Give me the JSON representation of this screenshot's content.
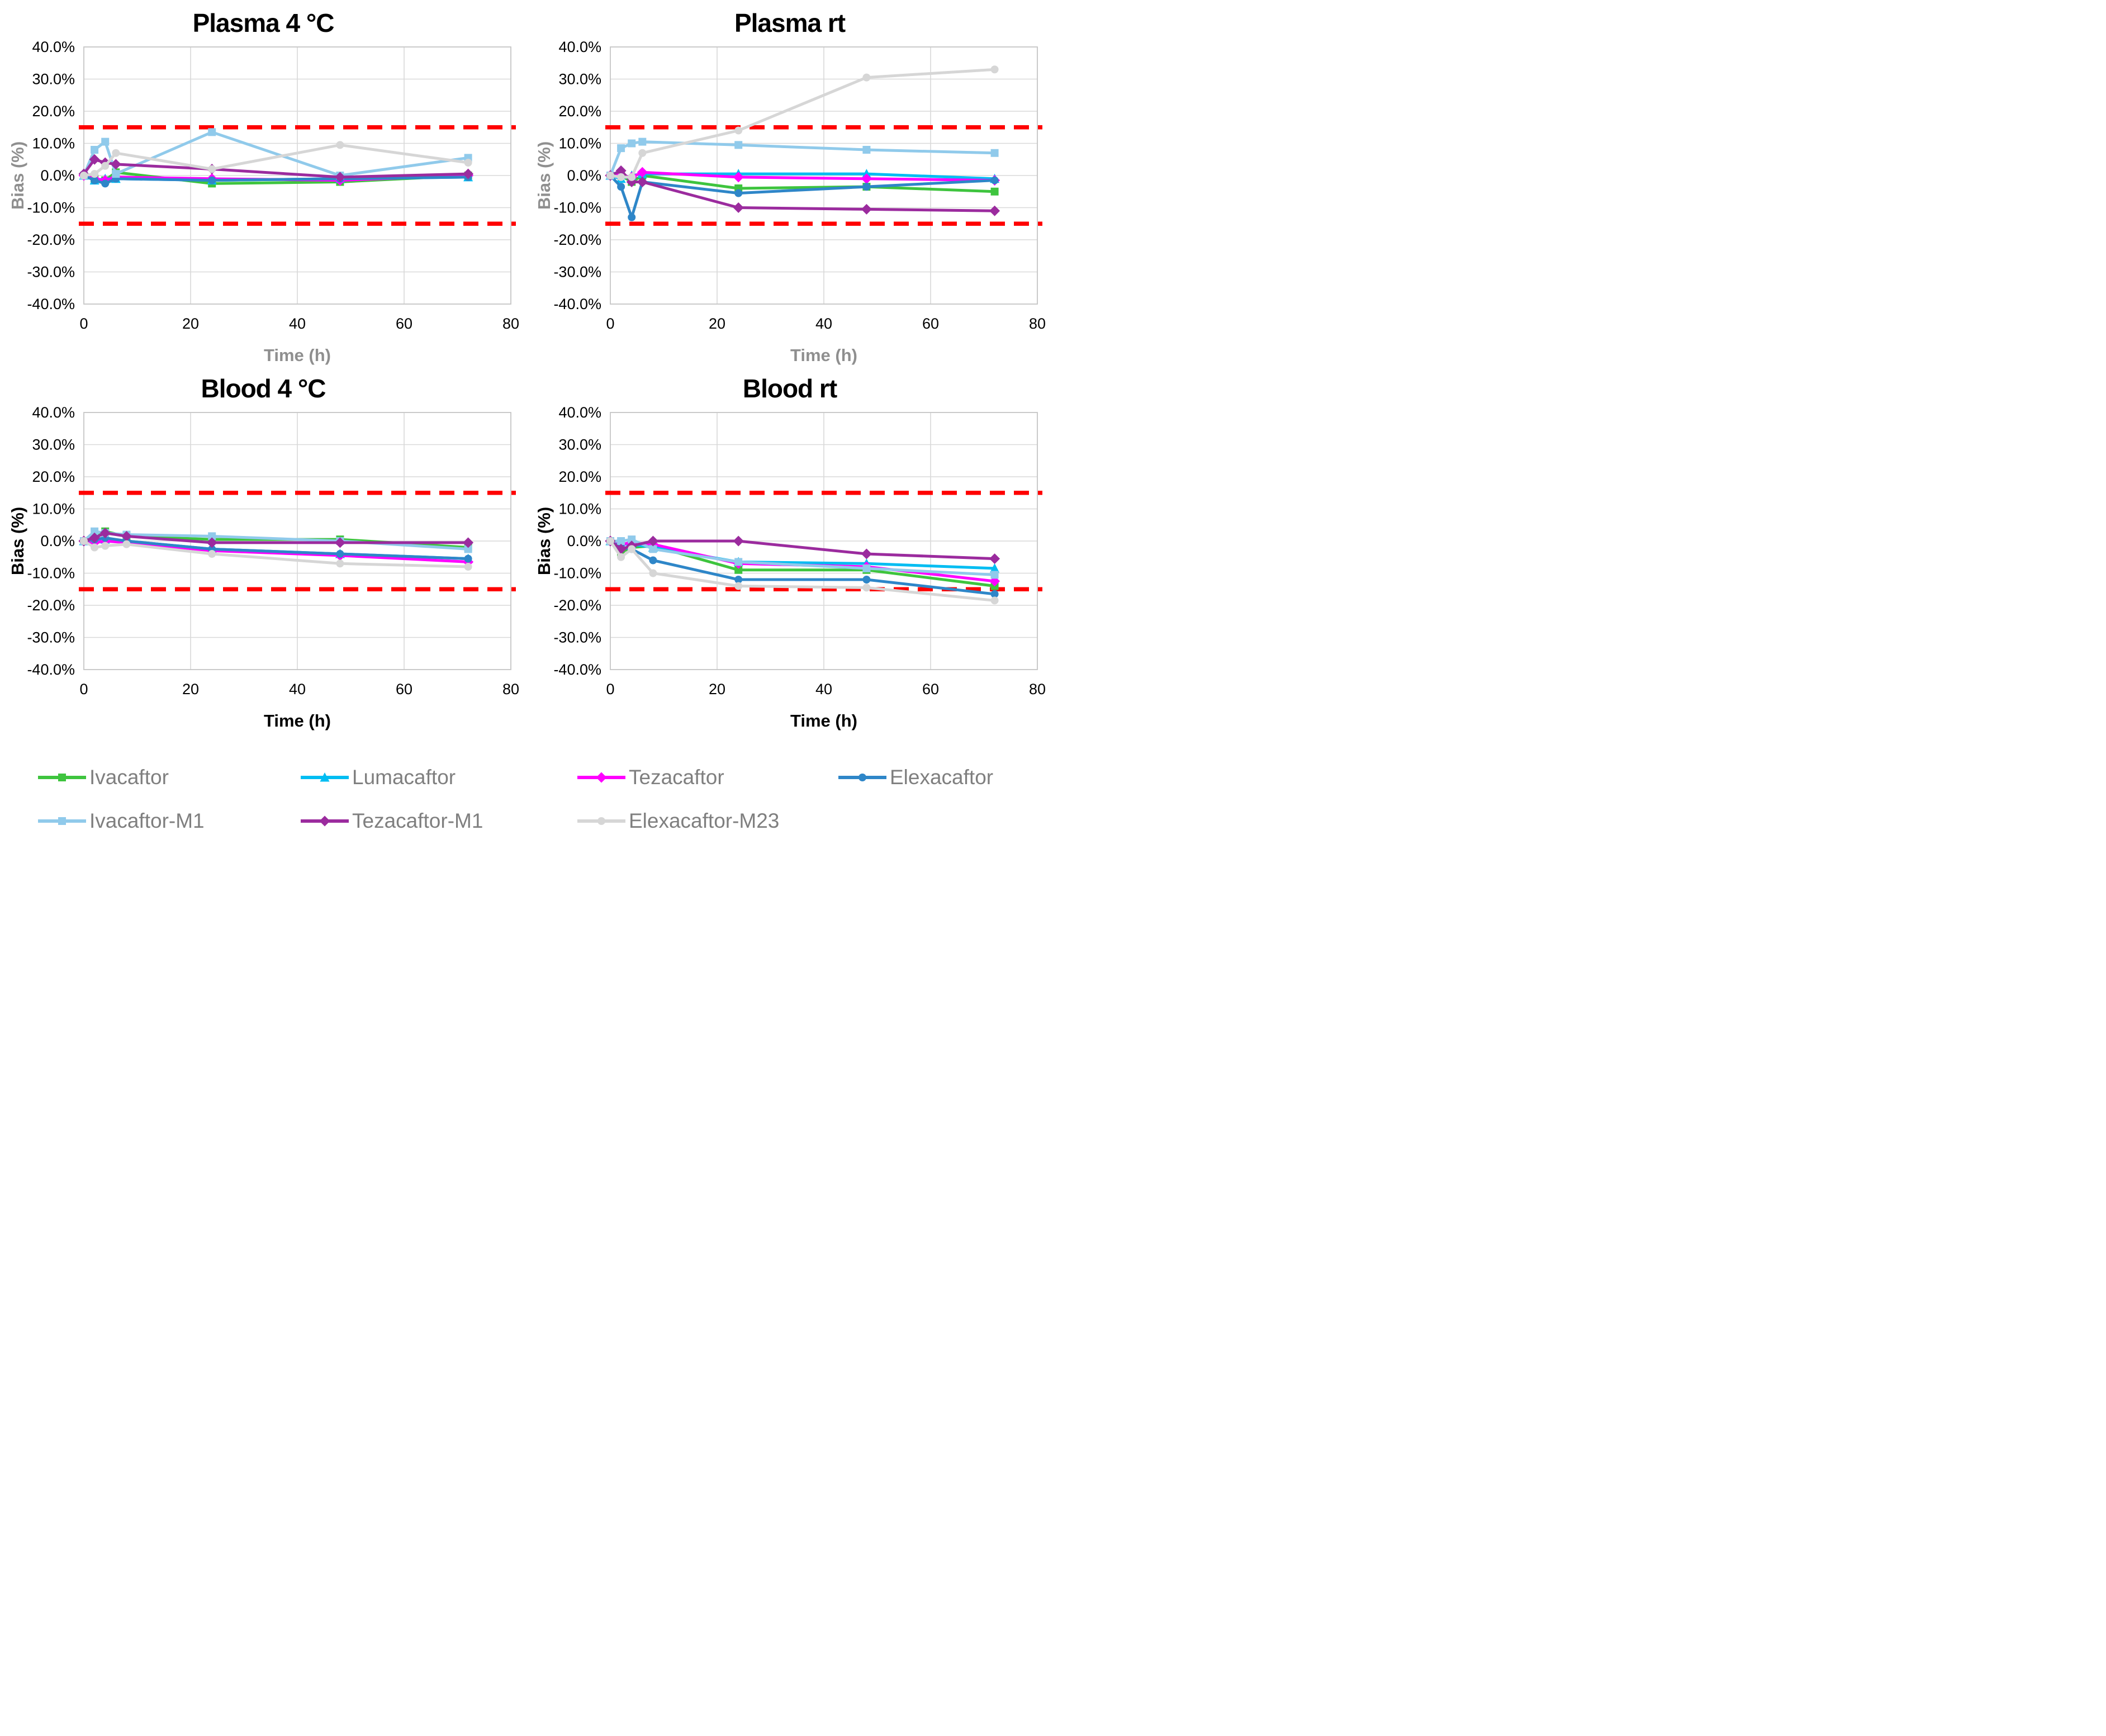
{
  "figure": {
    "background": "#FFFFFF",
    "grid_color": "#D9D9D9",
    "plot_border_color": "#C6C6C6",
    "limit_line_color": "#FF0000",
    "tick_label_color": "#000000",
    "legend_text_color": "#7F7F7F"
  },
  "legend": {
    "items": [
      {
        "label": "Ivacaftor",
        "color": "#3EC43E",
        "marker": "square"
      },
      {
        "label": "Lumacaftor",
        "color": "#00BDF2",
        "marker": "triangle"
      },
      {
        "label": "Tezacaftor",
        "color": "#FF00FF",
        "marker": "diamond"
      },
      {
        "label": "Elexacaftor",
        "color": "#2E86C8",
        "marker": "circle"
      },
      {
        "label": "Ivacaftor-M1",
        "color": "#90CAEB",
        "marker": "square"
      },
      {
        "label": "Tezacaftor-M1",
        "color": "#9B2B9E",
        "marker": "diamond"
      },
      {
        "label": "Elexacaftor-M23",
        "color": "#D6D6D6",
        "marker": "circle"
      }
    ]
  },
  "chart_data": [
    {
      "type": "line",
      "title": "Plasma 4 °C",
      "xlabel": "Time (h)",
      "ylabel": "Bias (%)",
      "axis_title_color": "#8F8F8F",
      "xlim": [
        0,
        80
      ],
      "ylim": [
        -40,
        40
      ],
      "x_ticks": [
        0,
        20,
        40,
        60,
        80
      ],
      "y_ticks": [
        "40.0%",
        "30.0%",
        "20.0%",
        "10.0%",
        "0.0%",
        "-10.0%",
        "-20.0%",
        "-30.0%",
        "-40.0%"
      ],
      "acceptance_limits": {
        "upper": 15,
        "lower": -15
      },
      "x": [
        0,
        2,
        4,
        6,
        24,
        48,
        72
      ],
      "series": [
        {
          "name": "Ivacaftor",
          "values": [
            0,
            -1,
            -1.5,
            1,
            -2.5,
            -2,
            0
          ]
        },
        {
          "name": "Lumacaftor",
          "values": [
            0,
            -1.5,
            -1,
            -1,
            -1.5,
            -1,
            -0.5
          ]
        },
        {
          "name": "Tezacaftor",
          "values": [
            0,
            -1,
            -1.5,
            -0.5,
            -1,
            -1.5,
            0
          ]
        },
        {
          "name": "Elexacaftor",
          "values": [
            0,
            -1.5,
            -2.5,
            -1,
            -1.5,
            -1,
            -0.5
          ]
        },
        {
          "name": "Ivacaftor-M1",
          "values": [
            0,
            8,
            10.5,
            0.5,
            13.5,
            0,
            5.5
          ]
        },
        {
          "name": "Tezacaftor-M1",
          "values": [
            0.5,
            5,
            4,
            3.5,
            2,
            -0.5,
            0.5
          ]
        },
        {
          "name": "Elexacaftor-M23",
          "values": [
            0,
            0.5,
            3,
            7,
            2,
            9.5,
            4
          ]
        }
      ]
    },
    {
      "type": "line",
      "title": "Plasma rt",
      "xlabel": "Time (h)",
      "ylabel": "Bias (%)",
      "axis_title_color": "#8F8F8F",
      "xlim": [
        0,
        80
      ],
      "ylim": [
        -40,
        40
      ],
      "x_ticks": [
        0,
        20,
        40,
        60,
        80
      ],
      "y_ticks": [
        "40.0%",
        "30.0%",
        "20.0%",
        "10.0%",
        "0.0%",
        "-10.0%",
        "-20.0%",
        "-30.0%",
        "-40.0%"
      ],
      "acceptance_limits": {
        "upper": 15,
        "lower": -15
      },
      "x": [
        0,
        2,
        4,
        6,
        24,
        48,
        72
      ],
      "series": [
        {
          "name": "Ivacaftor",
          "values": [
            0,
            0,
            -2,
            0,
            -4,
            -3.5,
            -5
          ]
        },
        {
          "name": "Lumacaftor",
          "values": [
            0,
            -1,
            0,
            0.5,
            0.5,
            0.5,
            -1
          ]
        },
        {
          "name": "Tezacaftor",
          "values": [
            0,
            0,
            -0.5,
            1,
            -0.5,
            -1,
            -1.5
          ]
        },
        {
          "name": "Elexacaftor",
          "values": [
            0,
            -3.5,
            -13,
            -2,
            -5.5,
            -3.5,
            -1.5
          ]
        },
        {
          "name": "Ivacaftor-M1",
          "values": [
            0,
            8.5,
            10,
            10.5,
            9.5,
            8,
            7
          ]
        },
        {
          "name": "Tezacaftor-M1",
          "values": [
            0,
            1.5,
            -2,
            -2,
            -10,
            -10.5,
            -11
          ]
        },
        {
          "name": "Elexacaftor-M23",
          "values": [
            0,
            -0.5,
            -0.5,
            7,
            14,
            30.5,
            33
          ]
        }
      ]
    },
    {
      "type": "line",
      "title": "Blood 4 °C",
      "xlabel": "Time (h)",
      "ylabel": "Bias (%)",
      "axis_title_color": "#000000",
      "xlim": [
        0,
        80
      ],
      "ylim": [
        -40,
        40
      ],
      "x_ticks": [
        0,
        20,
        40,
        60,
        80
      ],
      "y_ticks": [
        "40.0%",
        "30.0%",
        "20.0%",
        "10.0%",
        "0.0%",
        "-10.0%",
        "-20.0%",
        "-30.0%",
        "-40.0%"
      ],
      "acceptance_limits": {
        "upper": 15,
        "lower": -15
      },
      "x": [
        0,
        2,
        4,
        8,
        24,
        48,
        72
      ],
      "series": [
        {
          "name": "Ivacaftor",
          "values": [
            0,
            1,
            3,
            1.5,
            0.5,
            0.5,
            -2
          ]
        },
        {
          "name": "Lumacaftor",
          "values": [
            0,
            0.5,
            0.5,
            0,
            -2.5,
            -4,
            -5.5
          ]
        },
        {
          "name": "Tezacaftor",
          "values": [
            0,
            -0.5,
            0,
            -0.5,
            -3,
            -4.5,
            -6.5
          ]
        },
        {
          "name": "Elexacaftor",
          "values": [
            0,
            0.5,
            1,
            0,
            -2.5,
            -4,
            -5.5
          ]
        },
        {
          "name": "Ivacaftor-M1",
          "values": [
            0,
            3,
            2.5,
            2,
            1.5,
            0,
            -2.5
          ]
        },
        {
          "name": "Tezacaftor-M1",
          "values": [
            0,
            1,
            2.5,
            1.5,
            -0.5,
            -0.5,
            -0.5
          ]
        },
        {
          "name": "Elexacaftor-M23",
          "values": [
            0,
            -2,
            -1.5,
            -1,
            -4,
            -7,
            -8
          ]
        }
      ]
    },
    {
      "type": "line",
      "title": "Blood rt",
      "xlabel": "Time (h)",
      "ylabel": "Bias (%)",
      "axis_title_color": "#000000",
      "xlim": [
        0,
        80
      ],
      "ylim": [
        -40,
        40
      ],
      "x_ticks": [
        0,
        20,
        40,
        60,
        80
      ],
      "y_ticks": [
        "40.0%",
        "30.0%",
        "20.0%",
        "10.0%",
        "0.0%",
        "-10.0%",
        "-20.0%",
        "-30.0%",
        "-40.0%"
      ],
      "acceptance_limits": {
        "upper": 15,
        "lower": -15
      },
      "x": [
        0,
        2,
        4,
        8,
        24,
        48,
        72
      ],
      "series": [
        {
          "name": "Ivacaftor",
          "values": [
            0,
            -3.5,
            -2,
            -1.5,
            -9,
            -9,
            -14
          ]
        },
        {
          "name": "Lumacaftor",
          "values": [
            0,
            -1,
            -1,
            -2,
            -6.5,
            -7,
            -8.5
          ]
        },
        {
          "name": "Tezacaftor",
          "values": [
            0,
            -1,
            -0.5,
            -1,
            -7,
            -8,
            -12.5
          ]
        },
        {
          "name": "Elexacaftor",
          "values": [
            0,
            -2,
            -2.5,
            -6,
            -12,
            -12,
            -16.5
          ]
        },
        {
          "name": "Ivacaftor-M1",
          "values": [
            0,
            0,
            0.5,
            -2.5,
            -6.5,
            -8.5,
            -10.5
          ]
        },
        {
          "name": "Tezacaftor-M1",
          "values": [
            0,
            -2.5,
            -1.5,
            0,
            0,
            -4,
            -5.5
          ]
        },
        {
          "name": "Elexacaftor-M23",
          "values": [
            0,
            -5,
            -2.5,
            -10,
            -14,
            -14.5,
            -18.5
          ]
        }
      ]
    }
  ]
}
